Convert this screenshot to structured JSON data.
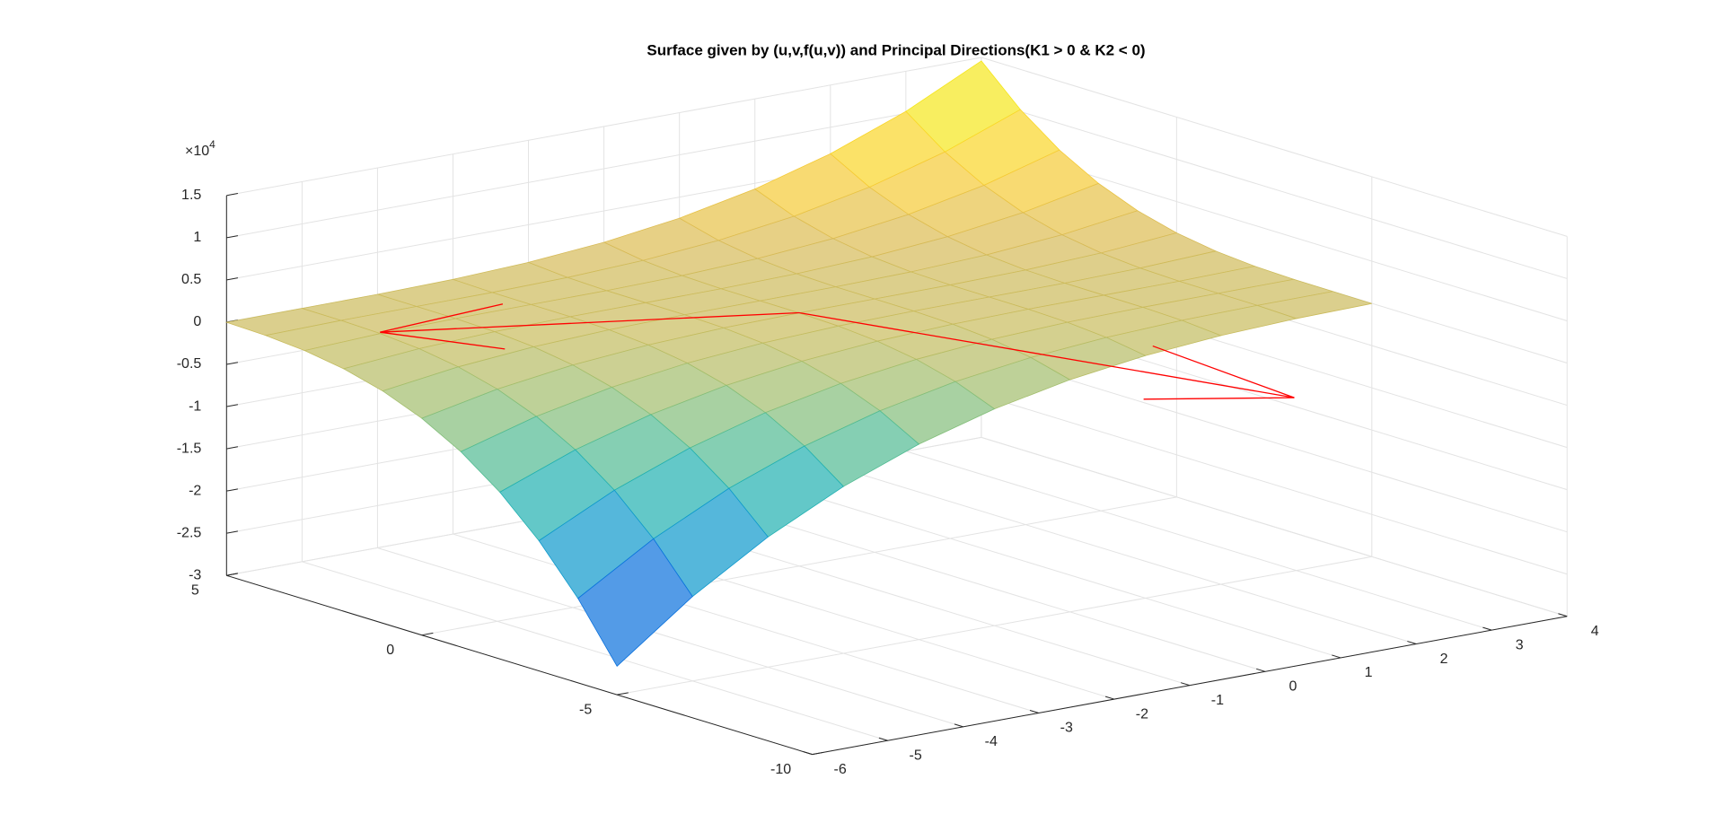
{
  "chart_data": {
    "type": "surface",
    "title": "Surface given by (u,v,f(u,v)) and Principal Directions(K1 > 0 & K2 < 0)",
    "x": [
      -6,
      -5,
      -4,
      -3,
      -2,
      -1,
      0,
      1,
      2,
      3,
      4
    ],
    "y": [
      -5,
      -4,
      -3,
      -2,
      -1,
      0,
      1,
      2,
      3,
      4,
      5
    ],
    "z": [
      [
        -26620,
        -20000,
        -14580,
        -10240,
        -6860,
        -4320,
        -2500,
        -1280,
        -540,
        -160,
        -20
      ],
      [
        -20000,
        -14580,
        -10240,
        -6860,
        -4320,
        -2500,
        -1280,
        -540,
        -160,
        -20,
        0
      ],
      [
        -14580,
        -10240,
        -6860,
        -4320,
        -2500,
        -1280,
        -540,
        -160,
        -20,
        0,
        20
      ],
      [
        -10240,
        -6860,
        -4320,
        -2500,
        -1280,
        -540,
        -160,
        -20,
        0,
        20,
        160
      ],
      [
        -6860,
        -4320,
        -2500,
        -1280,
        -540,
        -160,
        -20,
        0,
        20,
        160,
        540
      ],
      [
        -4320,
        -2500,
        -1280,
        -540,
        -160,
        -20,
        0,
        20,
        160,
        540,
        1280
      ],
      [
        -2500,
        -1280,
        -540,
        -160,
        -20,
        0,
        20,
        160,
        540,
        1280,
        2500
      ],
      [
        -1280,
        -540,
        -160,
        -20,
        0,
        20,
        160,
        540,
        1280,
        2500,
        4320
      ],
      [
        -540,
        -160,
        -20,
        0,
        20,
        160,
        540,
        1280,
        2500,
        4320,
        6860
      ],
      [
        -160,
        -20,
        0,
        20,
        160,
        540,
        1280,
        2500,
        4320,
        6860,
        10240
      ],
      [
        -20,
        0,
        20,
        160,
        540,
        1280,
        2500,
        4320,
        6860,
        10240,
        14580
      ]
    ],
    "colormap": "parula",
    "arrows": [
      {
        "color": "#ff0000",
        "start": [
          -1,
          0,
          0
        ],
        "end": [
          -5,
          3,
          0
        ]
      },
      {
        "color": "#ff0000",
        "start": [
          -1,
          0,
          0
        ],
        "end": [
          0.8,
          -9.2,
          0
        ]
      }
    ],
    "xlim": [
      -6,
      4
    ],
    "ylim": [
      -10,
      5
    ],
    "zlim": [
      -30000,
      15000
    ],
    "xticks": [
      -6,
      -5,
      -4,
      -3,
      -2,
      -1,
      0,
      1,
      2,
      3,
      4
    ],
    "yticks": [
      -10,
      -5,
      0,
      5
    ],
    "zticks": [
      {
        "value": -30000,
        "label": "-3"
      },
      {
        "value": -25000,
        "label": "-2.5"
      },
      {
        "value": -20000,
        "label": "-2"
      },
      {
        "value": -15000,
        "label": "-1.5"
      },
      {
        "value": -10000,
        "label": "-1"
      },
      {
        "value": -5000,
        "label": "-0.5"
      },
      {
        "value": 0,
        "label": "0"
      },
      {
        "value": 5000,
        "label": "0.5"
      },
      {
        "value": 10000,
        "label": "1"
      },
      {
        "value": 15000,
        "label": "1.5"
      }
    ],
    "z_multiplier": "×10",
    "z_exponent": 4,
    "grid": true
  }
}
